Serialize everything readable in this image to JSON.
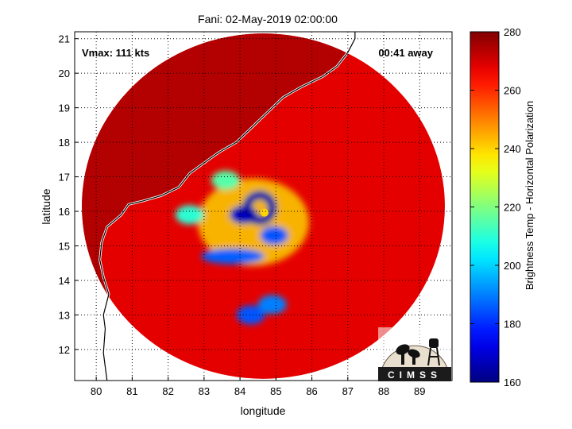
{
  "chart_data": {
    "type": "heatmap",
    "title": "Fani: 02-May-2019 02:00:00",
    "xlabel": "longitude",
    "ylabel": "latitude",
    "xlim": [
      79.4,
      89.9
    ],
    "ylim": [
      11.1,
      21.2
    ],
    "xticks": [
      80,
      81,
      82,
      83,
      84,
      85,
      86,
      87,
      88,
      89
    ],
    "yticks": [
      12,
      13,
      14,
      15,
      16,
      17,
      18,
      19,
      20,
      21
    ],
    "grid": true,
    "annotations": {
      "vmax": "Vmax: 111 kts",
      "time_offset": "00:41 away"
    },
    "colorbar": {
      "label": "Brightness Temp - Horizontal Polarization",
      "range": [
        160,
        280
      ],
      "ticks": [
        160,
        180,
        200,
        220,
        240,
        260,
        280
      ],
      "colormap": "jet"
    },
    "swath": {
      "center_lon": 84.65,
      "center_lat": 16.15,
      "radius_lon": 5.05,
      "radius_lat": 5.0
    },
    "eye": {
      "lon": 84.55,
      "lat": 16.1,
      "min_temp": 165
    },
    "features": [
      {
        "lon": 84.1,
        "lat": 15.9,
        "temp": 168
      },
      {
        "lon": 84.95,
        "lat": 15.3,
        "temp": 185
      },
      {
        "lon": 83.8,
        "lat": 14.7,
        "temp": 186
      },
      {
        "lon": 84.3,
        "lat": 13.0,
        "temp": 185
      },
      {
        "lon": 84.9,
        "lat": 13.3,
        "temp": 190
      },
      {
        "lon": 82.6,
        "lat": 15.9,
        "temp": 210
      },
      {
        "lon": 83.6,
        "lat": 16.9,
        "temp": 215
      }
    ],
    "coastline": [
      [
        80.3,
        11.1
      ],
      [
        80.2,
        11.9
      ],
      [
        80.25,
        12.6
      ],
      [
        80.2,
        13.0
      ],
      [
        80.35,
        13.6
      ],
      [
        80.2,
        14.1
      ],
      [
        80.1,
        14.6
      ],
      [
        80.15,
        15.1
      ],
      [
        80.3,
        15.55
      ],
      [
        80.7,
        15.9
      ],
      [
        80.9,
        16.2
      ],
      [
        81.3,
        16.3
      ],
      [
        81.8,
        16.45
      ],
      [
        82.3,
        16.7
      ],
      [
        82.6,
        17.1
      ],
      [
        83.0,
        17.4
      ],
      [
        83.4,
        17.7
      ],
      [
        83.9,
        18.0
      ],
      [
        84.4,
        18.5
      ],
      [
        84.8,
        18.9
      ],
      [
        85.2,
        19.3
      ],
      [
        85.7,
        19.6
      ],
      [
        86.3,
        19.9
      ],
      [
        86.7,
        20.2
      ],
      [
        87.0,
        20.6
      ],
      [
        87.2,
        21.0
      ],
      [
        87.2,
        21.2
      ]
    ]
  },
  "logo": {
    "text": "CIMSS"
  }
}
